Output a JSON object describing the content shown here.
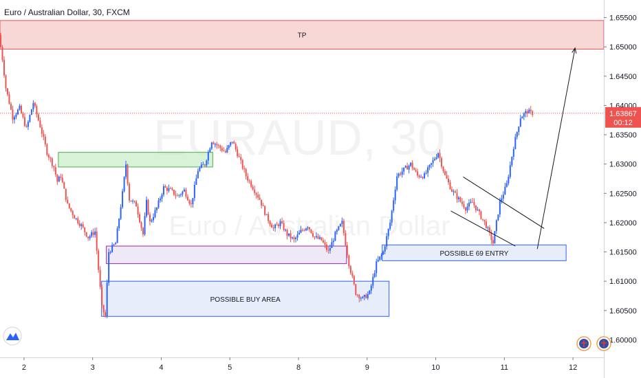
{
  "chart_data": {
    "type": "candlestick",
    "title": "Euro / Australian Dollar, 30, FXCM",
    "watermark": {
      "symbol": "EURAUD, 30",
      "name": "Euro / Australian Dollar"
    },
    "y_range": [
      1.597,
      1.658
    ],
    "y_ticks": [
      "1.60000",
      "1.60500",
      "1.61000",
      "1.61500",
      "1.62000",
      "1.62500",
      "1.63000",
      "1.63500",
      "1.64000",
      "1.64500",
      "1.65000",
      "1.65500"
    ],
    "x_ticks": [
      "2",
      "3",
      "4",
      "5",
      "8",
      "9",
      "10",
      "11",
      "12"
    ],
    "last_price": {
      "label": "1.63867",
      "countdown": "00:12",
      "value": 1.63867,
      "color": "#ef5350"
    },
    "colors": {
      "up": "#2962ff",
      "down": "#ef5350",
      "grid": "#e0e3eb"
    },
    "price_path": [
      [
        0,
        1.652
      ],
      [
        0.5,
        1.648
      ],
      [
        1,
        1.643
      ],
      [
        2,
        1.638
      ],
      [
        3,
        1.6395
      ],
      [
        4,
        1.636
      ],
      [
        5,
        1.6405
      ],
      [
        6,
        1.6365
      ],
      [
        7,
        1.632
      ],
      [
        8,
        1.6295
      ],
      [
        8.5,
        1.627
      ],
      [
        9,
        1.628
      ],
      [
        10,
        1.623
      ],
      [
        11,
        1.621
      ],
      [
        12,
        1.6195
      ],
      [
        13,
        1.6175
      ],
      [
        14,
        1.6185
      ],
      [
        15,
        1.6055
      ],
      [
        15.5,
        1.604
      ],
      [
        16,
        1.615
      ],
      [
        17,
        1.6165
      ],
      [
        18,
        1.625
      ],
      [
        18.5,
        1.63
      ],
      [
        19,
        1.624
      ],
      [
        20,
        1.623
      ],
      [
        21,
        1.618
      ],
      [
        21.5,
        1.6235
      ],
      [
        22,
        1.62
      ],
      [
        23,
        1.6225
      ],
      [
        24,
        1.626
      ],
      [
        25,
        1.6255
      ],
      [
        26,
        1.6245
      ],
      [
        27,
        1.6255
      ],
      [
        28,
        1.623
      ],
      [
        29,
        1.629
      ],
      [
        30,
        1.63
      ],
      [
        31,
        1.634
      ],
      [
        32,
        1.633
      ],
      [
        33,
        1.632
      ],
      [
        34,
        1.634
      ],
      [
        35,
        1.631
      ],
      [
        36,
        1.628
      ],
      [
        37,
        1.626
      ],
      [
        38,
        1.624
      ],
      [
        39,
        1.621
      ],
      [
        40,
        1.619
      ],
      [
        41,
        1.62
      ],
      [
        42,
        1.618
      ],
      [
        43,
        1.617
      ],
      [
        44,
        1.6185
      ],
      [
        45,
        1.6195
      ],
      [
        46,
        1.6175
      ],
      [
        47,
        1.617
      ],
      [
        48,
        1.615
      ],
      [
        49,
        1.618
      ],
      [
        50,
        1.62
      ],
      [
        51,
        1.613
      ],
      [
        52,
        1.608
      ],
      [
        53,
        1.607
      ],
      [
        54,
        1.608
      ],
      [
        55,
        1.613
      ],
      [
        56,
        1.615
      ],
      [
        57,
        1.62
      ],
      [
        58,
        1.628
      ],
      [
        59,
        1.629
      ],
      [
        60,
        1.63
      ],
      [
        61,
        1.628
      ],
      [
        62,
        1.628
      ],
      [
        63,
        1.63
      ],
      [
        64,
        1.632
      ],
      [
        65,
        1.628
      ],
      [
        66,
        1.6255
      ],
      [
        67,
        1.624
      ],
      [
        68,
        1.6225
      ],
      [
        69,
        1.6235
      ],
      [
        70,
        1.6215
      ],
      [
        71,
        1.6195
      ],
      [
        72,
        1.6165
      ],
      [
        73,
        1.6235
      ],
      [
        74,
        1.6265
      ],
      [
        75,
        1.633
      ],
      [
        76,
        1.638
      ],
      [
        77,
        1.639
      ],
      [
        77.5,
        1.6387
      ]
    ],
    "x_domain": [
      0,
      88
    ],
    "x_tick_positions": [
      3.5,
      13.5,
      23.5,
      33.5,
      43.5,
      53.5,
      63.5,
      73.5,
      83.5
    ],
    "zones": [
      {
        "label": "TP",
        "x": [
          0,
          88
        ],
        "y": [
          1.6496,
          1.6545
        ],
        "fill": "#f5c6c6",
        "stroke": "#ef5350"
      },
      {
        "label": "",
        "x": [
          8.5,
          31
        ],
        "y": [
          1.6295,
          1.632
        ],
        "fill": "#c8ecc8",
        "stroke": "#4caf50"
      },
      {
        "label": "",
        "x": [
          15.5,
          50.5
        ],
        "y": [
          1.613,
          1.616
        ],
        "fill": "#e6dff2",
        "stroke": "#9c27b0"
      },
      {
        "label": "POSSIBLE BUY AREA",
        "x": [
          14.8,
          56.7
        ],
        "y": [
          1.604,
          1.61
        ],
        "fill": "#dde7f6",
        "stroke": "#2962ff"
      },
      {
        "label": "POSSIBLE 69 ENTRY",
        "x": [
          55.7,
          82.5
        ],
        "y": [
          1.6135,
          1.6162
        ],
        "fill": "#dde7f6",
        "stroke": "#2962ff"
      }
    ],
    "channel_lines": [
      {
        "from": [
          67.5,
          1.6278
        ],
        "to": [
          79.3,
          1.619
        ]
      },
      {
        "from": [
          65.7,
          1.622
        ],
        "to": [
          75.1,
          1.616
        ]
      }
    ],
    "arrow": {
      "from": [
        78.3,
        1.6155
      ],
      "to": [
        83.8,
        1.6498
      ]
    }
  }
}
